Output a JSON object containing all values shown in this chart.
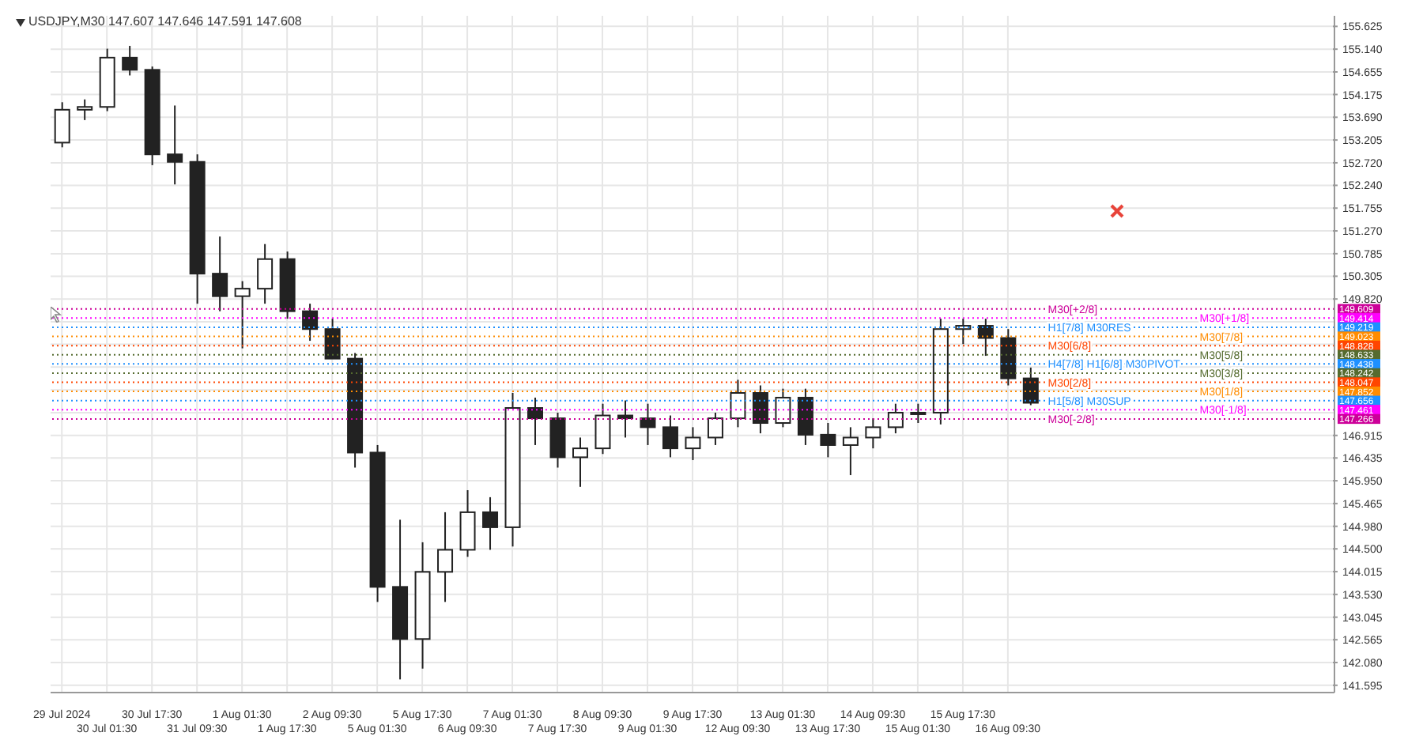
{
  "chart_data": {
    "type": "candlestick",
    "title": "USDJPY,M30 147.607 147.646 147.591 147.608",
    "categories": [
      "29 Jul 2024",
      null,
      "30 Jul 01:30",
      null,
      "30 Jul 17:30",
      null,
      "31 Jul 09:30",
      null,
      "1 Aug 01:30",
      null,
      "1 Aug 17:30",
      null,
      "2 Aug 09:30",
      null,
      "5 Aug 01:30",
      null,
      "5 Aug 17:30",
      null,
      "6 Aug 09:30",
      null,
      "7 Aug 01:30",
      null,
      "7 Aug 17:30",
      null,
      "8 Aug 09:30",
      null,
      "9 Aug 01:30",
      null,
      "9 Aug 17:30",
      null,
      "12 Aug 09:30",
      null,
      "13 Aug 01:30",
      null,
      "13 Aug 17:30",
      null,
      "14 Aug 09:30",
      null,
      "15 Aug 01:30",
      null,
      "15 Aug 17:30",
      null,
      "16 Aug 09:30",
      null,
      null,
      null,
      null,
      null,
      null,
      null,
      null,
      null,
      null,
      null,
      null,
      null,
      null
    ],
    "color": "#222222",
    "ohlc": [
      [
        153.15,
        154.01,
        153.05,
        153.85
      ],
      [
        153.85,
        154.07,
        153.63,
        153.91
      ],
      [
        153.91,
        155.15,
        153.82,
        154.96
      ],
      [
        154.96,
        155.21,
        154.58,
        154.7
      ],
      [
        154.7,
        154.77,
        152.67,
        152.9
      ],
      [
        152.9,
        153.94,
        152.26,
        152.74
      ],
      [
        152.74,
        152.9,
        149.72,
        150.36
      ],
      [
        150.36,
        151.15,
        149.56,
        149.88
      ],
      [
        149.88,
        150.2,
        148.77,
        150.04
      ],
      [
        150.04,
        150.99,
        149.72,
        150.67
      ],
      [
        150.67,
        150.83,
        149.4,
        149.56
      ],
      [
        149.56,
        149.72,
        148.93,
        149.18
      ],
      [
        149.18,
        149.4,
        148.55,
        148.55
      ],
      [
        148.55,
        148.67,
        146.23,
        146.55
      ],
      [
        146.55,
        146.71,
        143.37,
        143.69
      ],
      [
        143.69,
        145.12,
        141.72,
        142.58
      ],
      [
        142.58,
        144.64,
        141.95,
        144.01
      ],
      [
        144.01,
        145.28,
        143.37,
        144.48
      ],
      [
        144.48,
        145.75,
        144.33,
        145.28
      ],
      [
        145.28,
        145.6,
        144.48,
        144.96
      ],
      [
        144.96,
        147.82,
        144.55,
        147.5
      ],
      [
        147.5,
        147.72,
        146.71,
        147.28
      ],
      [
        147.28,
        147.4,
        146.23,
        146.45
      ],
      [
        146.45,
        146.87,
        145.82,
        146.64
      ],
      [
        146.64,
        147.59,
        146.52,
        147.34
      ],
      [
        147.34,
        147.66,
        146.87,
        147.28
      ],
      [
        147.28,
        147.59,
        146.71,
        147.09
      ],
      [
        147.09,
        147.34,
        146.45,
        146.64
      ],
      [
        146.64,
        147.09,
        146.39,
        146.87
      ],
      [
        146.87,
        147.4,
        146.71,
        147.28
      ],
      [
        147.28,
        148.1,
        147.09,
        147.82
      ],
      [
        147.82,
        147.98,
        146.96,
        147.18
      ],
      [
        147.18,
        147.91,
        147.09,
        147.72
      ],
      [
        147.72,
        147.91,
        146.71,
        146.93
      ],
      [
        146.93,
        147.18,
        146.45,
        146.71
      ],
      [
        146.71,
        147.09,
        146.07,
        146.87
      ],
      [
        146.87,
        147.28,
        146.64,
        147.09
      ],
      [
        147.09,
        147.59,
        146.96,
        147.4
      ],
      [
        147.4,
        147.59,
        147.18,
        147.4
      ],
      [
        147.4,
        149.4,
        147.15,
        149.18
      ],
      [
        149.18,
        149.4,
        148.86,
        149.25
      ],
      [
        149.25,
        149.4,
        148.61,
        148.99
      ],
      [
        148.99,
        149.18,
        147.98,
        148.13
      ],
      [
        148.13,
        148.36,
        147.56,
        147.61
      ],
      null,
      null,
      null,
      null,
      null,
      null,
      null,
      null,
      null,
      null,
      null,
      null,
      null
    ],
    "ylim": [
      141.44,
      155.85
    ],
    "yticks": [
      155.625,
      {
        "value": 155.14,
        "label": "155.140"
      },
      154.655,
      154.175,
      {
        "value": 153.69,
        "label": "153.690"
      },
      153.205,
      {
        "value": 152.72,
        "label": "152.720"
      },
      {
        "value": 152.24,
        "label": "152.240"
      },
      151.755,
      {
        "value": 151.27,
        "label": "151.270"
      },
      150.785,
      150.305,
      {
        "value": 149.82,
        "label": "149.820"
      },
      {
        "value": 149.335,
        "label": null
      },
      {
        "value": 148.855,
        "label": null
      },
      {
        "value": 148.37,
        "label": null
      },
      {
        "value": 147.885,
        "label": null
      },
      {
        "value": 147.4,
        "label": null
      },
      146.915,
      146.435,
      {
        "value": 145.95,
        "label": "145.950"
      },
      145.465,
      {
        "value": 144.98,
        "label": "144.980"
      },
      {
        "value": 144.5,
        "label": "144.500"
      },
      144.015,
      {
        "value": 143.53,
        "label": "143.530"
      },
      143.045,
      142.565,
      {
        "value": 142.08,
        "label": "142.080"
      },
      141.595
    ],
    "grid": true,
    "annotations": [
      {
        "text": "M30[+2/8]",
        "y": 149.609
      },
      {
        "text": "M30[+1/8]",
        "y": 149.414
      },
      {
        "text": "H1[7/8] M30RES",
        "y": 149.219
      },
      {
        "text": "M30[7/8]",
        "y": 149.023
      },
      {
        "text": "M30[6/8]",
        "y": 148.828
      },
      {
        "text": "M30[5/8]",
        "y": 148.633
      },
      {
        "text": "H4[7/8] H1[6/8] M30PIVOT",
        "y": 148.438
      },
      {
        "text": "M30[3/8]",
        "y": 148.242
      },
      {
        "text": "M30[2/8]",
        "y": 148.047
      },
      {
        "text": "M30[1/8]",
        "y": 147.852
      },
      {
        "text": "H1[5/8] M30SUP",
        "y": 147.656
      },
      {
        "text": "M30[-1/8]",
        "y": 147.461
      },
      {
        "text": "M30[-2/8]",
        "y": 147.266
      }
    ],
    "ref_lines": [
      {
        "axis": "y",
        "value": 149.609,
        "label": "149.609",
        "color": "#cc0099",
        "line_style": "dotted"
      },
      {
        "axis": "y",
        "value": 149.414,
        "label": "149.414",
        "color": "#ff00ff",
        "line_style": "dotted"
      },
      {
        "axis": "y",
        "value": 149.219,
        "label": "149.219",
        "color": "#1e90ff",
        "line_style": "dotted"
      },
      {
        "axis": "y",
        "value": 149.023,
        "label": "149.023",
        "color": "#ff8c00",
        "line_style": "dotted"
      },
      {
        "axis": "y",
        "value": 148.828,
        "label": "148.828",
        "color": "#ff4500",
        "line_style": "dotted"
      },
      {
        "axis": "y",
        "value": 148.633,
        "label": "148.633",
        "color": "#556b2f",
        "line_style": "dotted"
      },
      {
        "axis": "y",
        "value": 148.438,
        "label": "148.438",
        "color": "#1e90ff",
        "line_style": "dotted"
      },
      {
        "axis": "y",
        "value": 148.242,
        "label": "148.242",
        "color": "#556b2f",
        "line_style": "dotted"
      },
      {
        "axis": "y",
        "value": 148.047,
        "label": "148.047",
        "color": "#ff4500",
        "line_style": "dotted"
      },
      {
        "axis": "y",
        "value": 147.852,
        "label": "147.852",
        "color": "#ff8c00",
        "line_style": "dotted"
      },
      {
        "axis": "y",
        "value": 147.656,
        "label": "147.656",
        "color": "#1e90ff",
        "line_style": "dotted"
      },
      {
        "axis": "y",
        "value": 147.461,
        "label": "147.461",
        "color": "#ff00ff",
        "line_style": "dotted"
      },
      {
        "axis": "y",
        "value": 147.266,
        "label": "147.266",
        "color": "#cc0099",
        "line_style": "dotted"
      }
    ]
  }
}
